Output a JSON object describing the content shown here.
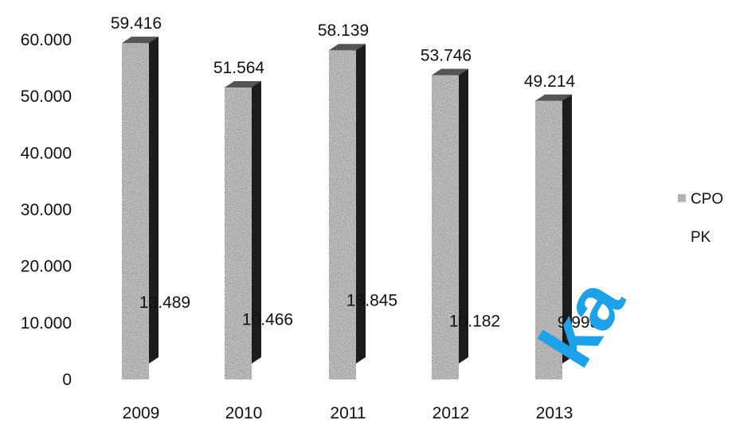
{
  "chart_data": {
    "type": "bar",
    "categories": [
      "2009",
      "2010",
      "2011",
      "2012",
      "2013"
    ],
    "series": [
      {
        "name": "CPO",
        "values": [
          59416,
          51564,
          58139,
          53746,
          49214
        ],
        "labels": [
          "59.416",
          "51.564",
          "58.139",
          "53.746",
          "49.214"
        ]
      },
      {
        "name": "PK",
        "values": [
          13489,
          10466,
          13845,
          10182,
          9998
        ],
        "labels": [
          "13.489",
          "10.466",
          "13.845",
          "10.182",
          "9.998"
        ]
      }
    ],
    "yticks": [
      "0",
      "10.000",
      "20.000",
      "30.000",
      "40.000",
      "50.000",
      "60.000"
    ],
    "ylim": [
      0,
      60000
    ],
    "legend": "right",
    "grid": false,
    "colors": {
      "CPO": "#c8c8c8",
      "PK": "#111111"
    },
    "title": "",
    "xlabel": "",
    "ylabel": ""
  },
  "watermark": {
    "text": "ka",
    "color": "#1ea1e8"
  }
}
